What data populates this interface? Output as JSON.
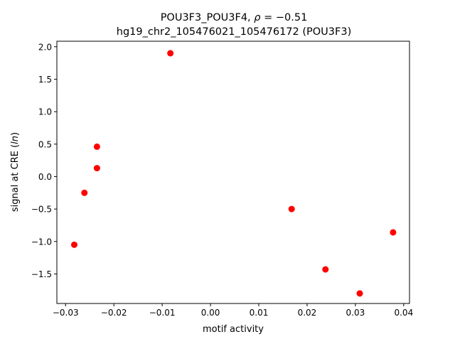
{
  "chart_data": {
    "type": "scatter",
    "title_line1": "POU3F3_POU3F4, ",
    "title_rho_symbol": "ρ",
    "title_rho_text": " = −0.51",
    "title_line2": "hg19_chr2_105476021_105476172 (POU3F3)",
    "xlabel": "motif activity",
    "ylabel_prefix": "signal at CRE (",
    "ylabel_italic": "ln",
    "ylabel_suffix": ")",
    "xlim": [
      -0.0318,
      0.0412
    ],
    "ylim": [
      -1.955,
      2.085
    ],
    "xticks": [
      -0.03,
      -0.02,
      -0.01,
      0.0,
      0.01,
      0.02,
      0.03,
      0.04
    ],
    "xtick_labels": [
      "−0.03",
      "−0.02",
      "−0.01",
      "0.00",
      "0.01",
      "0.02",
      "0.03",
      "0.04"
    ],
    "yticks": [
      -1.5,
      -1.0,
      -0.5,
      0.0,
      0.5,
      1.0,
      1.5,
      2.0
    ],
    "ytick_labels": [
      "−1.5",
      "−1.0",
      "−0.5",
      "0.0",
      "0.5",
      "1.0",
      "1.5",
      "2.0"
    ],
    "grid": false,
    "marker_color": "#ff0000",
    "points": [
      {
        "x": -0.0083,
        "y": 1.9
      },
      {
        "x": -0.0235,
        "y": 0.46
      },
      {
        "x": -0.0235,
        "y": 0.13
      },
      {
        "x": -0.0261,
        "y": -0.25
      },
      {
        "x": -0.0282,
        "y": -1.05
      },
      {
        "x": 0.0168,
        "y": -0.5
      },
      {
        "x": 0.0238,
        "y": -1.43
      },
      {
        "x": 0.0309,
        "y": -1.8
      },
      {
        "x": 0.0378,
        "y": -0.86
      }
    ]
  }
}
